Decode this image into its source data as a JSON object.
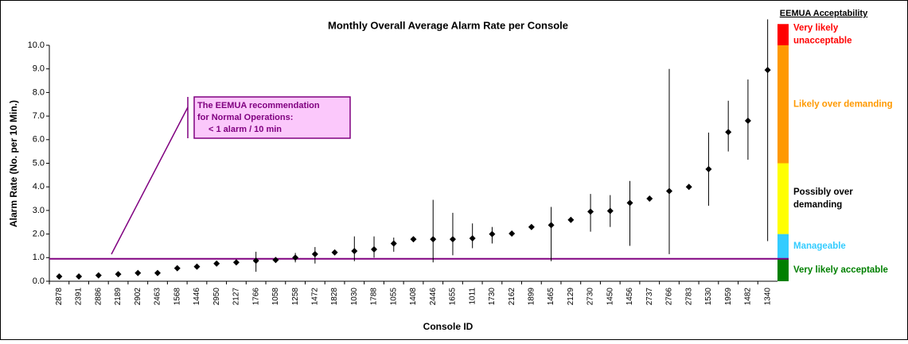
{
  "chart_data": {
    "type": "errorbar",
    "title": "Monthly Overall Average Alarm Rate per Console",
    "x_label": "Console ID",
    "y_label": "Alarm Rate (No. per 10 Min.)",
    "categories": [
      "2878",
      "2391",
      "2886",
      "2189",
      "2902",
      "2463",
      "1568",
      "1446",
      "2950",
      "2127",
      "1766",
      "1058",
      "1258",
      "1472",
      "1828",
      "1030",
      "1788",
      "1055",
      "1408",
      "2446",
      "1655",
      "1011",
      "1730",
      "2162",
      "1899",
      "1465",
      "2129",
      "2730",
      "1450",
      "1456",
      "2737",
      "2766",
      "2783",
      "1530",
      "1959",
      "1482",
      "1340"
    ],
    "values": [
      0.2,
      0.2,
      0.25,
      0.3,
      0.35,
      0.35,
      0.55,
      0.62,
      0.75,
      0.8,
      0.87,
      0.9,
      1.0,
      1.15,
      1.22,
      1.28,
      1.35,
      1.6,
      1.78,
      1.78,
      1.78,
      1.82,
      2.0,
      2.02,
      2.3,
      2.38,
      2.6,
      2.95,
      2.98,
      3.32,
      3.5,
      3.82,
      4.0,
      4.75,
      6.32,
      6.8,
      8.95
    ],
    "err_low": [
      null,
      null,
      null,
      null,
      null,
      null,
      null,
      null,
      null,
      null,
      0.4,
      null,
      0.8,
      0.75,
      null,
      0.85,
      1.0,
      1.25,
      null,
      0.8,
      1.1,
      1.4,
      1.6,
      null,
      null,
      0.85,
      null,
      2.1,
      2.3,
      1.5,
      null,
      1.15,
      null,
      3.2,
      5.5,
      5.15,
      1.7
    ],
    "err_high": [
      null,
      null,
      null,
      null,
      null,
      null,
      null,
      null,
      null,
      null,
      1.25,
      null,
      1.2,
      1.45,
      null,
      1.9,
      1.9,
      1.85,
      null,
      3.45,
      2.9,
      2.45,
      2.3,
      null,
      null,
      3.15,
      null,
      3.7,
      3.65,
      4.25,
      null,
      9.0,
      null,
      6.3,
      7.65,
      8.55,
      11.1
    ],
    "marker_color": "#000000",
    "ylim": [
      0,
      10
    ],
    "yticks": [
      {
        "value": 0,
        "label": "0.0"
      },
      {
        "value": 1,
        "label": "1.0"
      },
      {
        "value": 2,
        "label": "2.0"
      },
      {
        "value": 3,
        "label": "3.0"
      },
      {
        "value": 4,
        "label": "4.0"
      },
      {
        "value": 5,
        "label": "5.0"
      },
      {
        "value": 6,
        "label": "6.0"
      },
      {
        "value": 7,
        "label": "7.0"
      },
      {
        "value": 8,
        "label": "8.0"
      },
      {
        "value": 9,
        "label": "9.0"
      },
      {
        "value": 10,
        "label": "10.0"
      }
    ],
    "reference_line": {
      "value": 0.95,
      "color": "#800080"
    },
    "annotation": {
      "lines": [
        "The EEMUA recommendation",
        "for Normal Operations:",
        "< 1 alarm / 10 min"
      ]
    },
    "acceptability": {
      "title": "EEMUA Acceptability",
      "bands": [
        {
          "lines": [
            "Very likely acceptable"
          ],
          "from": 0,
          "to": 0.95,
          "color": "#008000",
          "text_color": "#008000"
        },
        {
          "lines": [
            "Manageable"
          ],
          "from": 0.95,
          "to": 2,
          "color": "#33ccff",
          "text_color": "#33ccff"
        },
        {
          "lines": [
            "Possibly over",
            "demanding"
          ],
          "from": 2,
          "to": 5,
          "color": "#ffff00",
          "text_color": "#000000"
        },
        {
          "lines": [
            "Likely over demanding"
          ],
          "from": 5,
          "to": 10,
          "color": "#ff9900",
          "text_color": "#ff9900"
        },
        {
          "lines": [
            "Very likely",
            "unacceptable"
          ],
          "from": 10,
          "to": 10.9,
          "color": "#ff0000",
          "text_color": "#ff0000"
        }
      ]
    }
  }
}
